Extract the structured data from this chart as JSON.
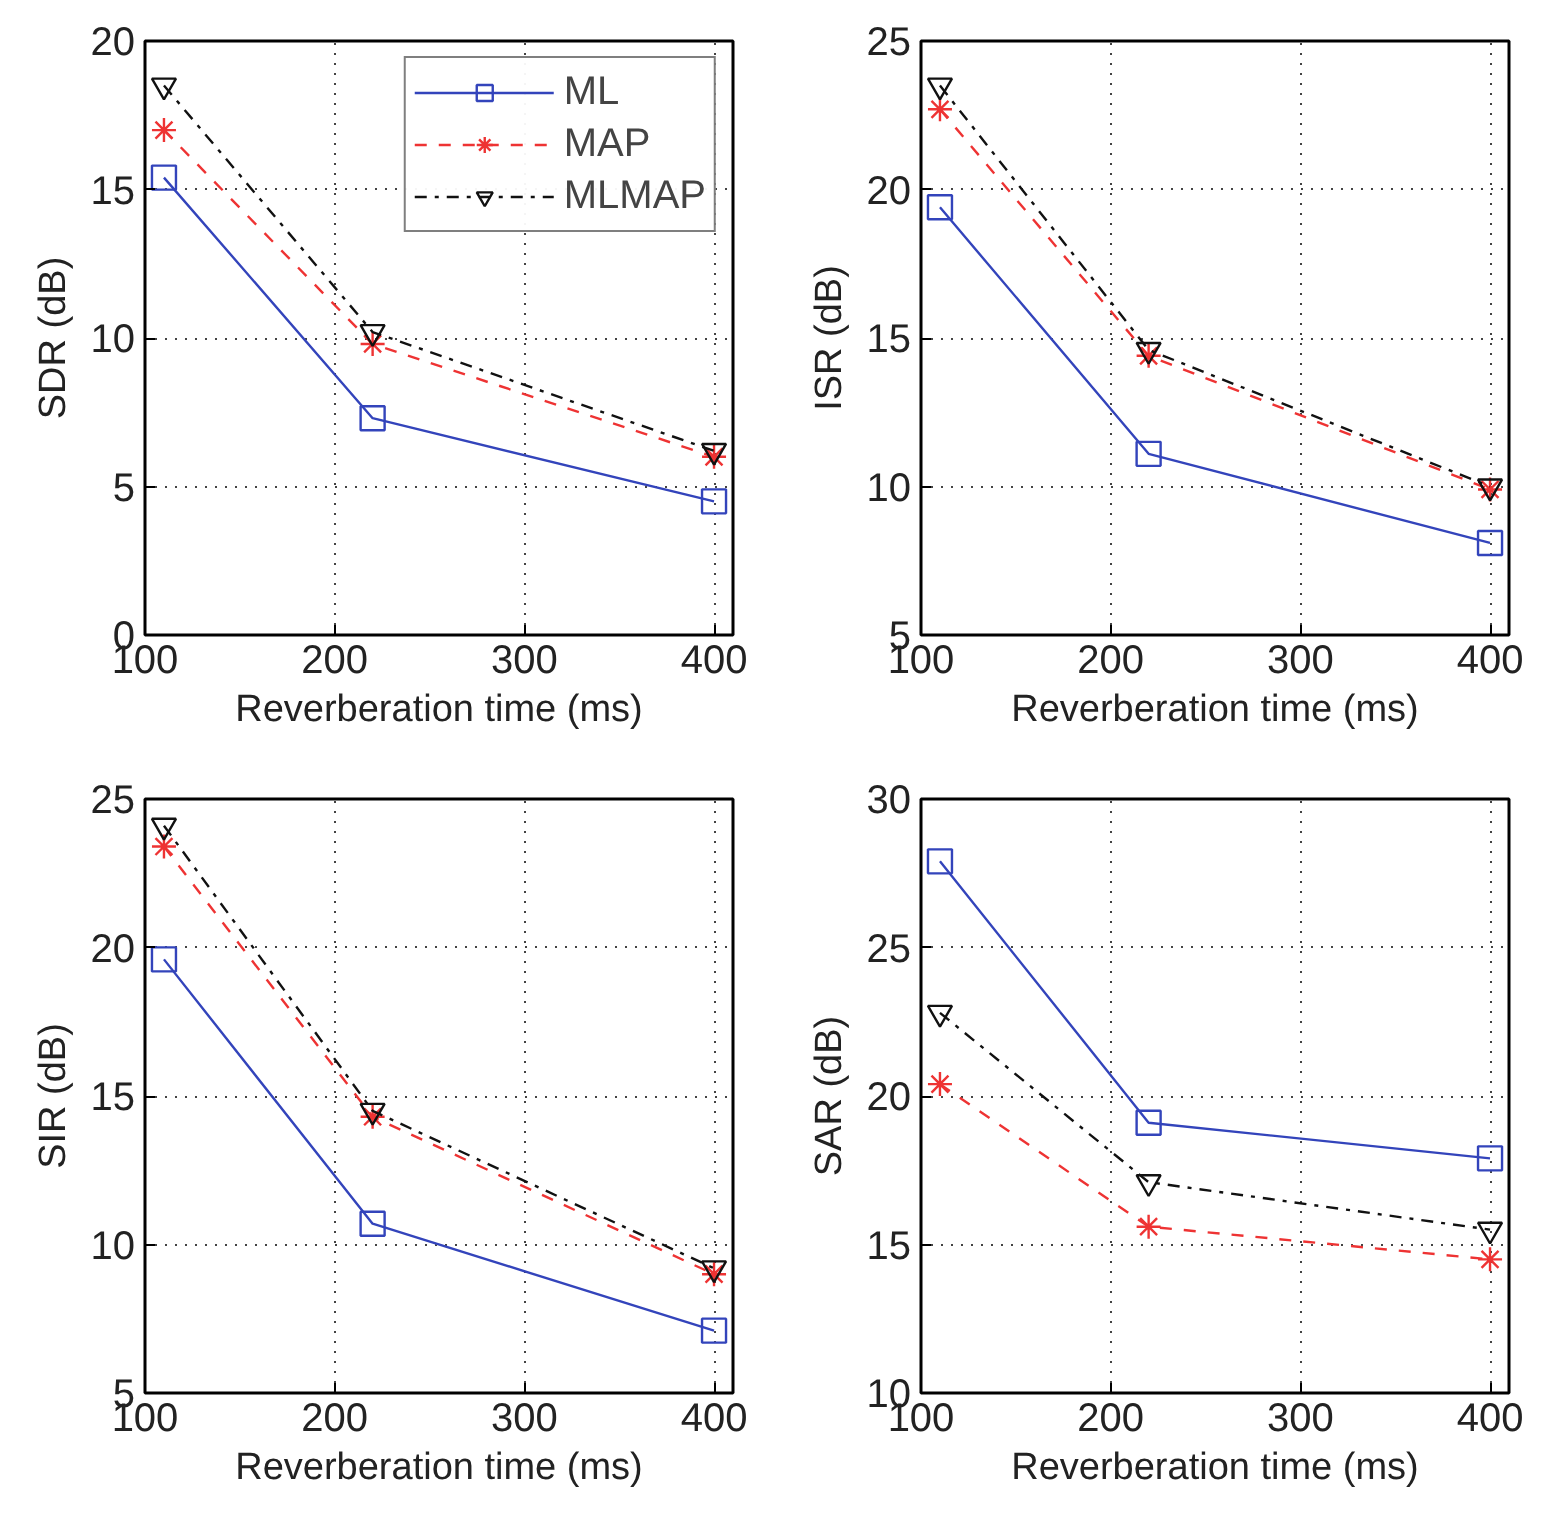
{
  "chart_data": [
    {
      "type": "line",
      "xlabel": "Reverberation time (ms)",
      "ylabel": "SDR (dB)",
      "x": [
        110,
        220,
        400
      ],
      "xlim": [
        100,
        410
      ],
      "xticks": [
        100,
        200,
        300,
        400
      ],
      "ylim": [
        0,
        20
      ],
      "yticks": [
        0,
        5,
        10,
        15,
        20
      ],
      "grid": true,
      "legend": "top right",
      "series": [
        {
          "name": "ML",
          "color": "#3344bb",
          "marker": "square",
          "line_style": "solid",
          "values": [
            15.4,
            7.3,
            4.5
          ]
        },
        {
          "name": "MAP",
          "color": "#ee3333",
          "marker": "cross",
          "line_style": "dashed",
          "values": [
            17.0,
            9.8,
            6.0
          ]
        },
        {
          "name": "MLMAP",
          "color": "#111111",
          "marker": "triangle",
          "line_style": "dashdot",
          "values": [
            18.5,
            10.2,
            6.2
          ]
        }
      ]
    },
    {
      "type": "line",
      "xlabel": "Reverberation time (ms)",
      "ylabel": "ISR (dB)",
      "x": [
        110,
        220,
        400
      ],
      "xlim": [
        100,
        410
      ],
      "xticks": [
        100,
        200,
        300,
        400
      ],
      "ylim": [
        5,
        25
      ],
      "yticks": [
        5,
        10,
        15,
        20,
        25
      ],
      "grid": true,
      "series": [
        {
          "color": "#3344bb",
          "marker": "square",
          "line_style": "solid",
          "values": [
            19.4,
            11.1,
            8.1
          ]
        },
        {
          "color": "#ee3333",
          "marker": "cross",
          "line_style": "dashed",
          "values": [
            22.7,
            14.4,
            9.9
          ]
        },
        {
          "color": "#111111",
          "marker": "triangle",
          "line_style": "dashdot",
          "values": [
            23.5,
            14.6,
            10.0
          ]
        }
      ]
    },
    {
      "type": "line",
      "xlabel": "Reverberation time (ms)",
      "ylabel": "SIR (dB)",
      "x": [
        110,
        220,
        400
      ],
      "xlim": [
        100,
        410
      ],
      "xticks": [
        100,
        200,
        300,
        400
      ],
      "ylim": [
        5,
        25
      ],
      "yticks": [
        5,
        10,
        15,
        20,
        25
      ],
      "grid": true,
      "series": [
        {
          "color": "#3344bb",
          "marker": "square",
          "line_style": "solid",
          "values": [
            19.6,
            10.7,
            7.1
          ]
        },
        {
          "color": "#ee3333",
          "marker": "cross",
          "line_style": "dashed",
          "values": [
            23.4,
            14.3,
            9.0
          ]
        },
        {
          "color": "#111111",
          "marker": "triangle",
          "line_style": "dashdot",
          "values": [
            24.1,
            14.5,
            9.2
          ]
        }
      ]
    },
    {
      "type": "line",
      "xlabel": "Reverberation time (ms)",
      "ylabel": "SAR (dB)",
      "x": [
        110,
        220,
        400
      ],
      "xlim": [
        100,
        410
      ],
      "xticks": [
        100,
        200,
        300,
        400
      ],
      "ylim": [
        10,
        30
      ],
      "yticks": [
        10,
        15,
        20,
        25,
        30
      ],
      "grid": true,
      "series": [
        {
          "color": "#3344bb",
          "marker": "square",
          "line_style": "solid",
          "values": [
            27.9,
            19.1,
            17.9
          ]
        },
        {
          "color": "#ee3333",
          "marker": "cross",
          "line_style": "dashed",
          "values": [
            20.4,
            15.6,
            14.5
          ]
        },
        {
          "color": "#111111",
          "marker": "triangle",
          "line_style": "dashdot",
          "values": [
            22.8,
            17.1,
            15.5
          ]
        }
      ]
    }
  ]
}
